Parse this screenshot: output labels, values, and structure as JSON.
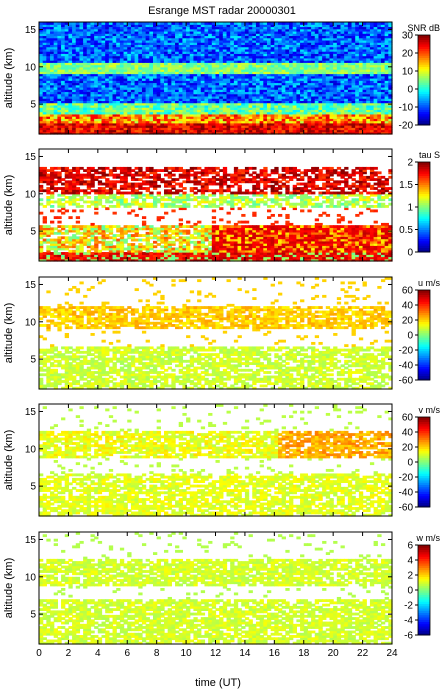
{
  "figure": {
    "title": "Esrange MST radar 20000301",
    "xlabel": "time (UT)"
  },
  "chart_data": [
    {
      "type": "heatmap",
      "ylabel": "altitude (km)",
      "xlim": [
        0,
        24
      ],
      "ylim": [
        1,
        16
      ],
      "xticks": [
        0,
        2,
        4,
        6,
        8,
        10,
        12,
        14,
        16,
        18,
        20,
        22,
        24
      ],
      "yticks": [
        5,
        10,
        15
      ],
      "colorbar": {
        "label": "SNR dB",
        "range": [
          -20,
          30
        ],
        "ticks": [
          30,
          20,
          10,
          0,
          -10,
          -20
        ]
      }
    },
    {
      "type": "heatmap",
      "ylabel": "altitude (km)",
      "xlim": [
        0,
        24
      ],
      "ylim": [
        1,
        16
      ],
      "xticks": [
        0,
        2,
        4,
        6,
        8,
        10,
        12,
        14,
        16,
        18,
        20,
        22,
        24
      ],
      "yticks": [
        5,
        10,
        15
      ],
      "colorbar": {
        "label": "tau S",
        "range": [
          0,
          2
        ],
        "ticks": [
          2,
          1.5,
          1,
          0.5,
          0
        ]
      }
    },
    {
      "type": "heatmap",
      "ylabel": "altitude (km)",
      "xlim": [
        0,
        24
      ],
      "ylim": [
        1,
        16
      ],
      "xticks": [
        0,
        2,
        4,
        6,
        8,
        10,
        12,
        14,
        16,
        18,
        20,
        22,
        24
      ],
      "yticks": [
        5,
        10,
        15
      ],
      "colorbar": {
        "label": "u m/s",
        "range": [
          -60,
          60
        ],
        "ticks": [
          60,
          40,
          20,
          0,
          -20,
          -40,
          -60
        ]
      }
    },
    {
      "type": "heatmap",
      "ylabel": "altitude (km)",
      "xlim": [
        0,
        24
      ],
      "ylim": [
        1,
        16
      ],
      "xticks": [
        0,
        2,
        4,
        6,
        8,
        10,
        12,
        14,
        16,
        18,
        20,
        22,
        24
      ],
      "yticks": [
        5,
        10,
        15
      ],
      "colorbar": {
        "label": "v m/s",
        "range": [
          -60,
          60
        ],
        "ticks": [
          60,
          40,
          20,
          0,
          -20,
          -40,
          -60
        ]
      }
    },
    {
      "type": "heatmap",
      "ylabel": "altitude (km)",
      "xlim": [
        0,
        24
      ],
      "ylim": [
        1,
        16
      ],
      "xticks": [
        0,
        2,
        4,
        6,
        8,
        10,
        12,
        14,
        16,
        18,
        20,
        22,
        24
      ],
      "yticks": [
        5,
        10,
        15
      ],
      "colorbar": {
        "label": "w m/s",
        "range": [
          -6,
          6
        ],
        "ticks": [
          6,
          4,
          2,
          0,
          -2,
          -4,
          -6
        ]
      }
    }
  ]
}
